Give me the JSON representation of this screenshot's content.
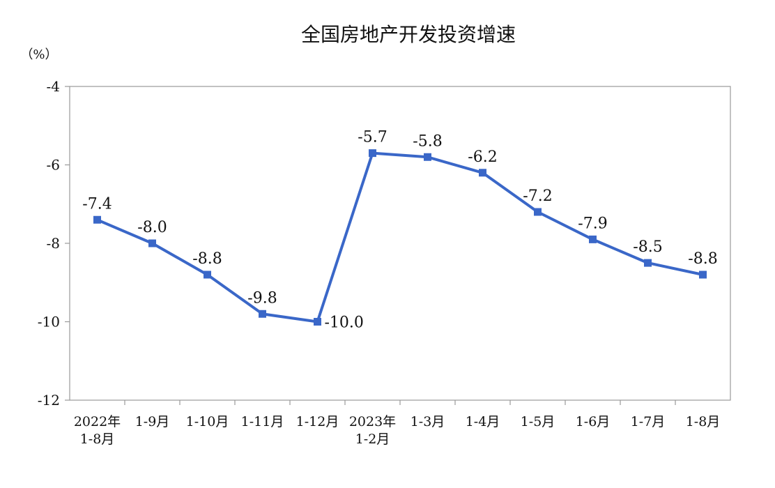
{
  "chart_data": {
    "type": "line",
    "title": "全国房地产开发投资增速",
    "unit": "（%）",
    "categories": [
      [
        "2022年",
        "1-8月"
      ],
      [
        "1-9月"
      ],
      [
        "1-10月"
      ],
      [
        "1-11月"
      ],
      [
        "1-12月"
      ],
      [
        "2023年",
        "1-2月"
      ],
      [
        "1-3月"
      ],
      [
        "1-4月"
      ],
      [
        "1-5月"
      ],
      [
        "1-6月"
      ],
      [
        "1-7月"
      ],
      [
        "1-8月"
      ]
    ],
    "values": [
      -7.4,
      -8.0,
      -8.8,
      -9.8,
      -10.0,
      -5.7,
      -5.8,
      -6.2,
      -7.2,
      -7.9,
      -8.5,
      -8.8
    ],
    "data_labels": [
      "-7.4",
      "-8.0",
      "-8.8",
      "-9.8",
      "-10.0",
      "-5.7",
      "-5.8",
      "-6.2",
      "-7.2",
      "-7.9",
      "-8.5",
      "-8.8"
    ],
    "ylim": [
      -12,
      -4
    ],
    "yticks": [
      -4,
      -6,
      -8,
      -10,
      -12
    ],
    "grid": false,
    "legend": false,
    "line_color": "#3a67c8",
    "marker": "square"
  }
}
